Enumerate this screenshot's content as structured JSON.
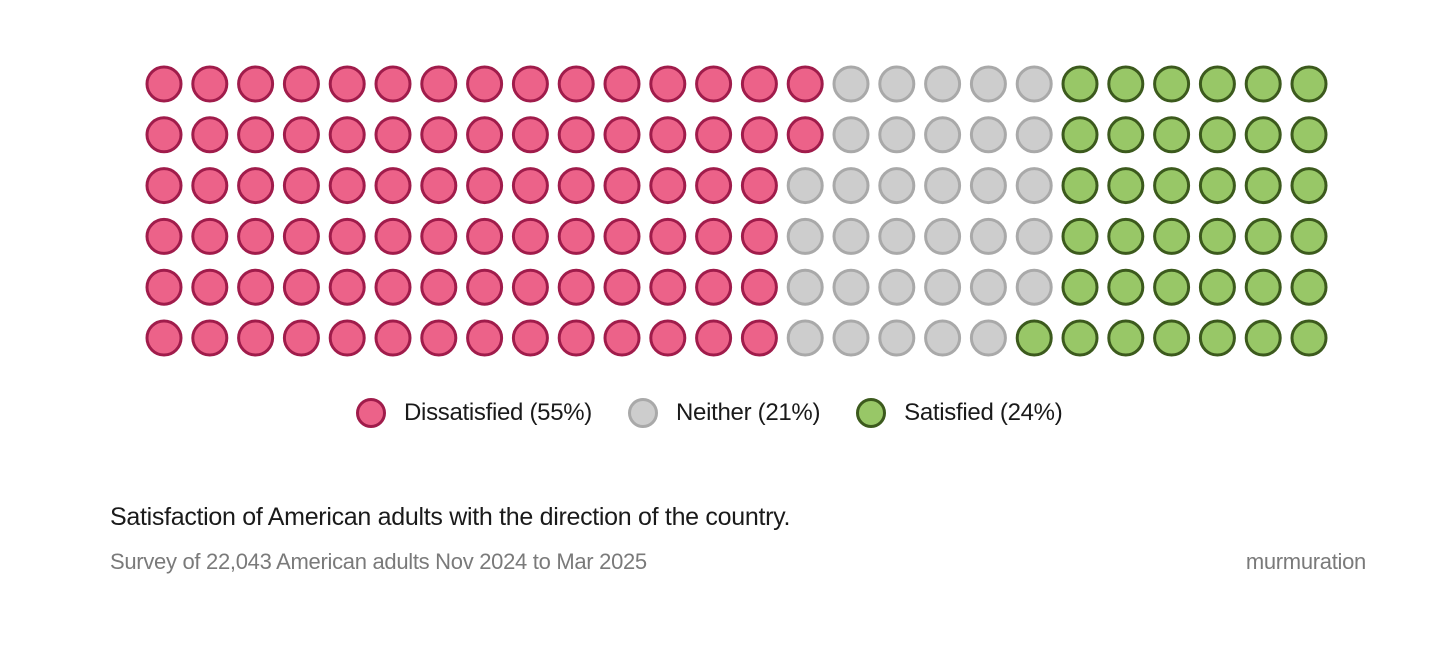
{
  "chart_data": {
    "type": "waffle",
    "rows": 6,
    "columns": 26,
    "total": 156,
    "categories": [
      "Dissatisfied",
      "Neither",
      "Satisfied"
    ],
    "values": [
      55,
      21,
      24
    ],
    "unit": "%",
    "row_counts": [
      [
        15,
        5,
        6
      ],
      [
        15,
        5,
        6
      ],
      [
        14,
        6,
        6
      ],
      [
        14,
        6,
        6
      ],
      [
        14,
        6,
        6
      ],
      [
        14,
        5,
        7
      ]
    ],
    "colors": {
      "Dissatisfied": {
        "fill": "#ec6289",
        "stroke": "#a01c4b"
      },
      "Neither": {
        "fill": "#cdcdcd",
        "stroke": "#a9a9a9"
      },
      "Satisfied": {
        "fill": "#98c767",
        "stroke": "#3c5a1d"
      }
    },
    "legend": [
      {
        "key": "Dissatisfied",
        "label": "Dissatisfied (55%)"
      },
      {
        "key": "Neither",
        "label": "Neither (21%)"
      },
      {
        "key": "Satisfied",
        "label": "Satisfied (24%)"
      }
    ],
    "title": "Satisfaction of American adults with the direction of the country.",
    "subtitle": "Survey of 22,043 American adults Nov 2024 to Mar 2025",
    "credit": "murmuration",
    "legend_position": "bottom-center"
  }
}
